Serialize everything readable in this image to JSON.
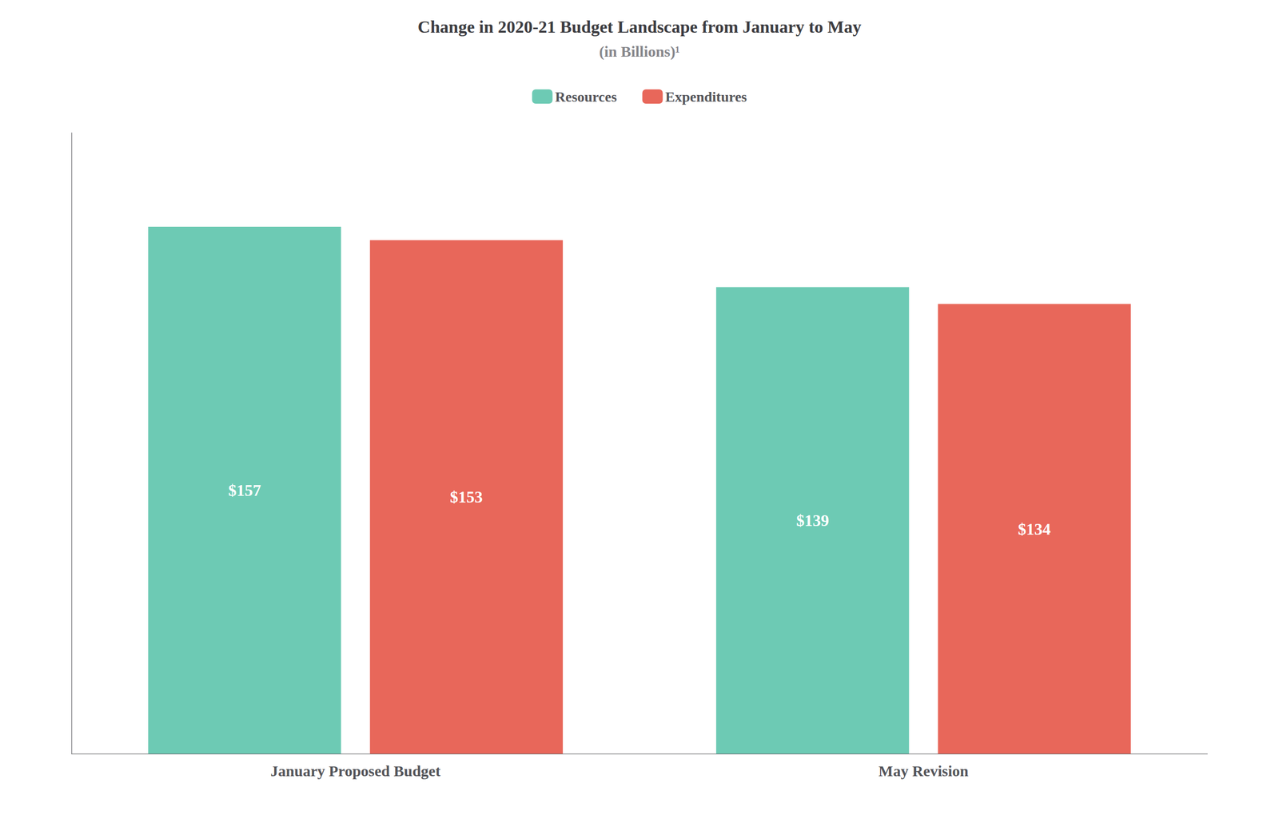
{
  "chart_data": {
    "type": "bar",
    "title": "Change in 2020-21 Budget Landscape from January to May",
    "subtitle": "(in Billions)¹",
    "categories": [
      "January Proposed Budget",
      "May Revision"
    ],
    "series": [
      {
        "name": "Resources",
        "color": "#6dcab4",
        "values": [
          157,
          139
        ],
        "value_labels": [
          "$157",
          "$139"
        ]
      },
      {
        "name": "Expenditures",
        "color": "#e8675a",
        "values": [
          153,
          134
        ],
        "value_labels": [
          "$153",
          "$134"
        ]
      }
    ],
    "ylim": [
      0,
      185
    ],
    "grid": false,
    "legend": "top",
    "data_labels": true,
    "tick_labels": "x"
  }
}
